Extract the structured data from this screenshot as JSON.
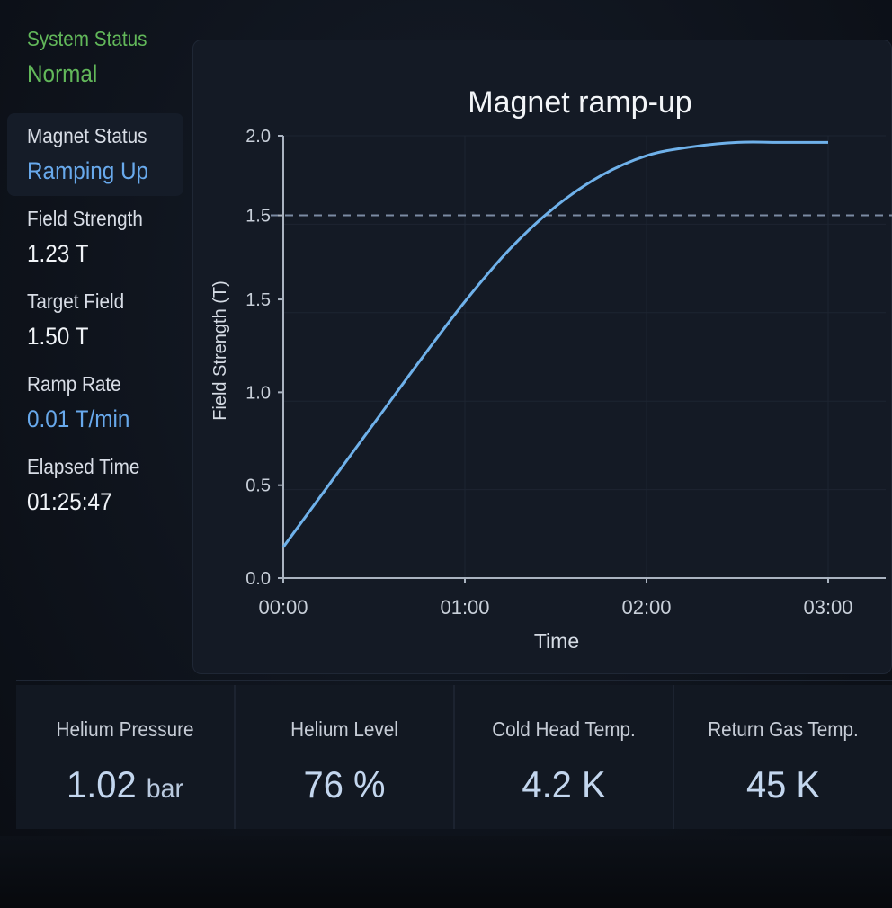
{
  "sidebar": {
    "system_status": {
      "label": "System Status",
      "value": "Normal"
    },
    "magnet_status": {
      "label": "Magnet Status",
      "value": "Ramping Up"
    },
    "field_strength": {
      "label": "Field Strength",
      "value": "1.23 T"
    },
    "target_field": {
      "label": "Target Field",
      "value": "1.50 T"
    },
    "ramp_rate": {
      "label": "Ramp Rate",
      "value": "0.01 T/min"
    },
    "elapsed_time": {
      "label": "Elapsed Time",
      "value": "01:25:47"
    }
  },
  "chart_data": {
    "type": "line",
    "title": "Magnet ramp-up",
    "xlabel": "Time",
    "ylabel": "Field Strength (T)",
    "x_ticks": [
      "00:00",
      "01:00",
      "02:00",
      "03:00"
    ],
    "y_ticks": [
      "0.0",
      "0.5",
      "1.0",
      "1.5",
      "1.5",
      "2.0"
    ],
    "ylim": [
      0,
      2.0
    ],
    "target_line": 1.5,
    "series": [
      {
        "x": [
          "00:00",
          "00:15",
          "00:30",
          "00:45",
          "01:00",
          "01:15",
          "01:30",
          "01:45",
          "02:00",
          "02:15",
          "02:30",
          "02:45",
          "03:00"
        ],
        "values": [
          0.14,
          0.42,
          0.7,
          0.98,
          1.25,
          1.49,
          1.68,
          1.82,
          1.91,
          1.95,
          1.97,
          1.97,
          1.97
        ]
      }
    ],
    "grid": true,
    "colors": {
      "line": "#6fb1ea",
      "target": "#7b8ba3"
    }
  },
  "bottom": {
    "helium_pressure": {
      "label": "Helium Pressure",
      "value": "1.02",
      "unit": "bar"
    },
    "helium_level": {
      "label": "Helium Level",
      "value": "76 %"
    },
    "cold_head_temp": {
      "label": "Cold Head Temp.",
      "value": "4.2 K"
    },
    "return_gas_temp": {
      "label": "Return Gas Temp.",
      "value": "45 K"
    }
  }
}
